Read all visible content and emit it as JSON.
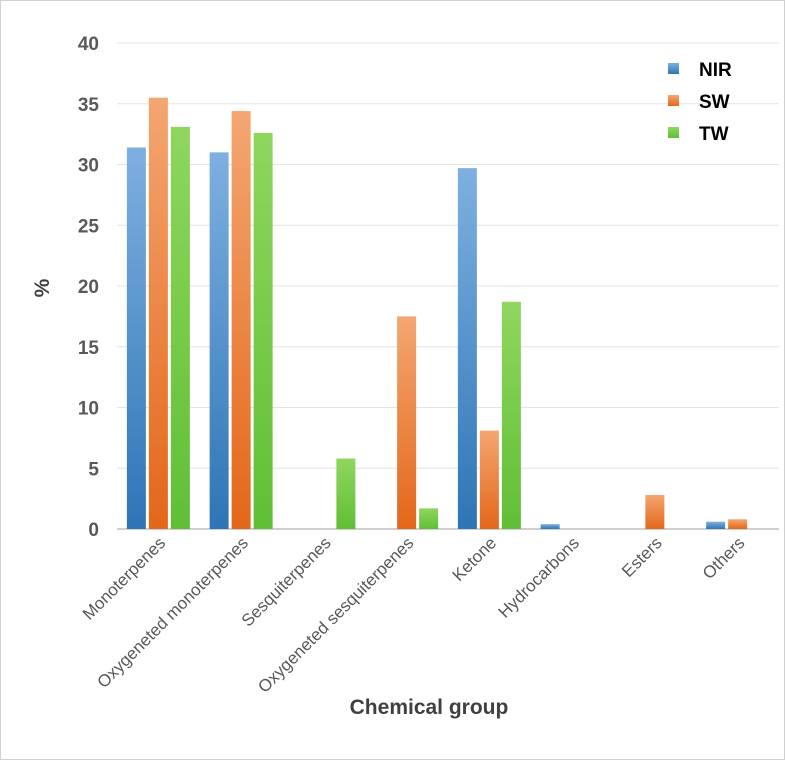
{
  "chart_data": {
    "type": "bar",
    "categories": [
      "Monoterpenes",
      "Oxygeneted monoterpenes",
      "Sesquiterpenes",
      "Oxygeneted sesquiterpenes",
      "Ketone",
      "Hydrocarbons",
      "Esters",
      "Others"
    ],
    "series": [
      {
        "name": "NIR",
        "color": "#5b9bd5",
        "values": [
          31.4,
          31.0,
          0,
          0,
          29.7,
          0.4,
          0,
          0.6
        ]
      },
      {
        "name": "SW",
        "color": "#ed7d31",
        "values": [
          35.5,
          34.4,
          0,
          17.5,
          8.1,
          0,
          2.8,
          0.8
        ]
      },
      {
        "name": "TW",
        "color": "#70c844",
        "values": [
          33.1,
          32.6,
          5.8,
          1.7,
          18.7,
          0,
          0,
          0
        ]
      }
    ],
    "xlabel": "Chemical group",
    "ylabel": "%",
    "ylim": [
      0,
      40
    ],
    "yticks": [
      0,
      5,
      10,
      15,
      20,
      25,
      30,
      35,
      40
    ],
    "grid": true,
    "legend_position": "top-right"
  }
}
